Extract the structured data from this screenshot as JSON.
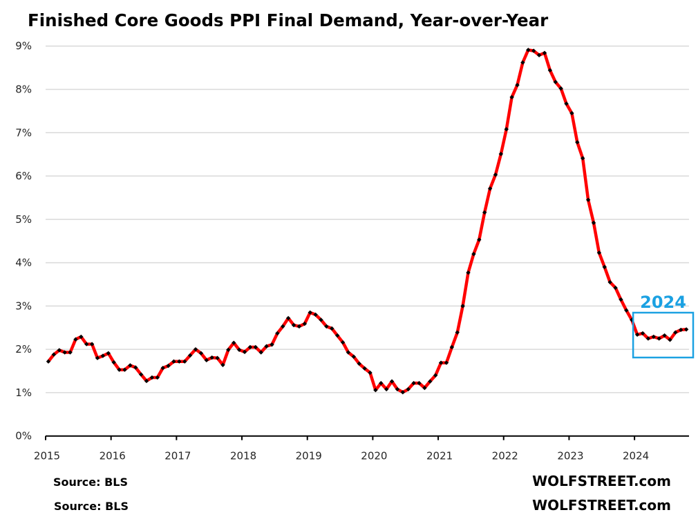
{
  "chart_data": {
    "type": "line",
    "title": "Finished Core Goods PPI Final Demand, Year-over-Year",
    "xlabel": "",
    "ylabel": "",
    "ylim": [
      0,
      9
    ],
    "y_ticks": [
      "0%",
      "1%",
      "2%",
      "3%",
      "4%",
      "5%",
      "6%",
      "7%",
      "8%",
      "9%"
    ],
    "x_ticks": [
      "2015",
      "2016",
      "2017",
      "2018",
      "2019",
      "2020",
      "2021",
      "2022",
      "2023",
      "2024"
    ],
    "x_start": "2015-01",
    "x_frequency": "monthly",
    "grid": "horizontal",
    "series": [
      {
        "name": "Finished Core Goods PPI Final Demand, YoY %",
        "color": "#FF0000",
        "marker_color": "#000000",
        "values": [
          1.72,
          1.88,
          1.98,
          1.93,
          1.93,
          2.23,
          2.29,
          2.12,
          2.12,
          1.8,
          1.85,
          1.91,
          1.7,
          1.53,
          1.53,
          1.63,
          1.58,
          1.42,
          1.27,
          1.35,
          1.35,
          1.57,
          1.62,
          1.72,
          1.72,
          1.72,
          1.86,
          2.0,
          1.91,
          1.75,
          1.81,
          1.8,
          1.64,
          1.99,
          2.15,
          1.99,
          1.94,
          2.05,
          2.05,
          1.93,
          2.07,
          2.11,
          2.37,
          2.53,
          2.72,
          2.56,
          2.53,
          2.59,
          2.85,
          2.8,
          2.68,
          2.53,
          2.48,
          2.32,
          2.16,
          1.93,
          1.83,
          1.67,
          1.56,
          1.46,
          1.06,
          1.22,
          1.08,
          1.26,
          1.08,
          1.01,
          1.08,
          1.22,
          1.22,
          1.11,
          1.26,
          1.4,
          1.69,
          1.69,
          2.05,
          2.39,
          3.0,
          3.77,
          4.2,
          4.53,
          5.16,
          5.71,
          6.03,
          6.51,
          7.08,
          7.82,
          8.1,
          8.62,
          8.91,
          8.89,
          8.79,
          8.84,
          8.44,
          8.17,
          8.02,
          7.67,
          7.45,
          6.78,
          6.41,
          5.45,
          4.92,
          4.23,
          3.9,
          3.55,
          3.42,
          3.15,
          2.9,
          2.68,
          2.34,
          2.37,
          2.25,
          2.29,
          2.25,
          2.32,
          2.22,
          2.39,
          2.45,
          2.46
        ]
      }
    ],
    "annotations": [
      {
        "text": "2024",
        "type": "highlight-box",
        "color": "#1BA1E2",
        "covers": "2024-01 to 2024-10"
      }
    ],
    "footer": {
      "source_1": "Source: BLS",
      "source_2": "Source: BLS",
      "brand_1": "WOLFSTREET.com",
      "brand_2": "WOLFSTREET.com"
    }
  }
}
